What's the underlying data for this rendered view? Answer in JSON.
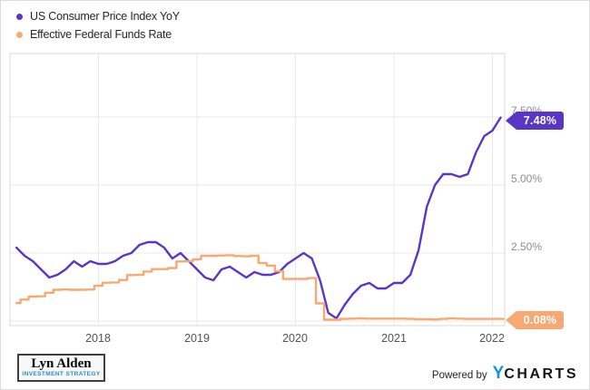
{
  "legend": {
    "items": [
      {
        "label": "US Consumer Price Index YoY",
        "color": "#5b36c6"
      },
      {
        "label": "Effective Federal Funds Rate",
        "color": "#f8a873"
      }
    ]
  },
  "y_axis": {
    "ticks": [
      {
        "label": "7.50%",
        "value": 7.5
      },
      {
        "label": "5.00%",
        "value": 5.0
      },
      {
        "label": "2.50%",
        "value": 2.5
      }
    ]
  },
  "x_axis": {
    "ticks": [
      {
        "label": "2018",
        "year": 2018
      },
      {
        "label": "2019",
        "year": 2019
      },
      {
        "label": "2020",
        "year": 2020
      },
      {
        "label": "2021",
        "year": 2021
      },
      {
        "label": "2022",
        "year": 2022
      }
    ]
  },
  "badges": {
    "cpi": {
      "label": "7.48%",
      "color": "#5b36c6"
    },
    "ffr": {
      "label": "0.08%",
      "color": "#f8a873"
    }
  },
  "branding": {
    "logo_title": "Lyn Alden",
    "logo_subtitle": "INVESTMENT STRATEGY",
    "powered_by": "Powered by",
    "ycharts_y": "Y",
    "ycharts_rest": "CHARTS"
  },
  "chart_data": {
    "type": "line",
    "title": "",
    "xlabel": "",
    "ylabel": "",
    "y_unit": "%",
    "ylim": [
      -0.17,
      9.83
    ],
    "y_gridlines": [
      0.0,
      2.5,
      5.0,
      7.5
    ],
    "x_gridline_years": [
      2018,
      2019,
      2020,
      2021,
      2022
    ],
    "legend_position": "top-left",
    "grid": true,
    "x_months": [
      "2017-02",
      "2017-03",
      "2017-04",
      "2017-05",
      "2017-06",
      "2017-07",
      "2017-08",
      "2017-09",
      "2017-10",
      "2017-11",
      "2017-12",
      "2018-01",
      "2018-02",
      "2018-03",
      "2018-04",
      "2018-05",
      "2018-06",
      "2018-07",
      "2018-08",
      "2018-09",
      "2018-10",
      "2018-11",
      "2018-12",
      "2019-01",
      "2019-02",
      "2019-03",
      "2019-04",
      "2019-05",
      "2019-06",
      "2019-07",
      "2019-08",
      "2019-09",
      "2019-10",
      "2019-11",
      "2019-12",
      "2020-01",
      "2020-02",
      "2020-03",
      "2020-04",
      "2020-05",
      "2020-06",
      "2020-07",
      "2020-08",
      "2020-09",
      "2020-10",
      "2020-11",
      "2020-12",
      "2021-01",
      "2021-02",
      "2021-03",
      "2021-04",
      "2021-05",
      "2021-06",
      "2021-07",
      "2021-08",
      "2021-09",
      "2021-10",
      "2021-11",
      "2021-12",
      "2022-01"
    ],
    "series": [
      {
        "name": "US Consumer Price Index YoY",
        "color": "#5b36c6",
        "style": "line",
        "last_value": 7.48,
        "values": [
          2.7,
          2.4,
          2.2,
          1.9,
          1.6,
          1.7,
          1.9,
          2.2,
          2.0,
          2.2,
          2.1,
          2.1,
          2.2,
          2.4,
          2.5,
          2.8,
          2.9,
          2.9,
          2.7,
          2.3,
          2.5,
          2.2,
          1.9,
          1.6,
          1.5,
          1.9,
          2.0,
          1.8,
          1.6,
          1.8,
          1.7,
          1.7,
          1.8,
          2.1,
          2.3,
          2.5,
          2.3,
          1.5,
          0.3,
          0.1,
          0.6,
          1.0,
          1.3,
          1.4,
          1.2,
          1.2,
          1.4,
          1.4,
          1.7,
          2.6,
          4.2,
          5.0,
          5.4,
          5.4,
          5.3,
          5.4,
          6.2,
          6.8,
          7.0,
          7.48
        ]
      },
      {
        "name": "Effective Federal Funds Rate",
        "color": "#f8a873",
        "style": "step",
        "last_value": 0.08,
        "values": [
          0.66,
          0.79,
          0.9,
          0.91,
          1.04,
          1.15,
          1.16,
          1.15,
          1.15,
          1.16,
          1.3,
          1.41,
          1.42,
          1.51,
          1.69,
          1.7,
          1.82,
          1.91,
          1.91,
          1.95,
          2.19,
          2.2,
          2.27,
          2.4,
          2.4,
          2.41,
          2.42,
          2.39,
          2.38,
          2.4,
          2.13,
          2.04,
          1.83,
          1.55,
          1.55,
          1.55,
          1.58,
          0.65,
          0.05,
          0.05,
          0.08,
          0.09,
          0.1,
          0.09,
          0.09,
          0.09,
          0.09,
          0.09,
          0.08,
          0.07,
          0.07,
          0.06,
          0.08,
          0.1,
          0.09,
          0.08,
          0.08,
          0.08,
          0.08,
          0.08
        ]
      }
    ]
  }
}
